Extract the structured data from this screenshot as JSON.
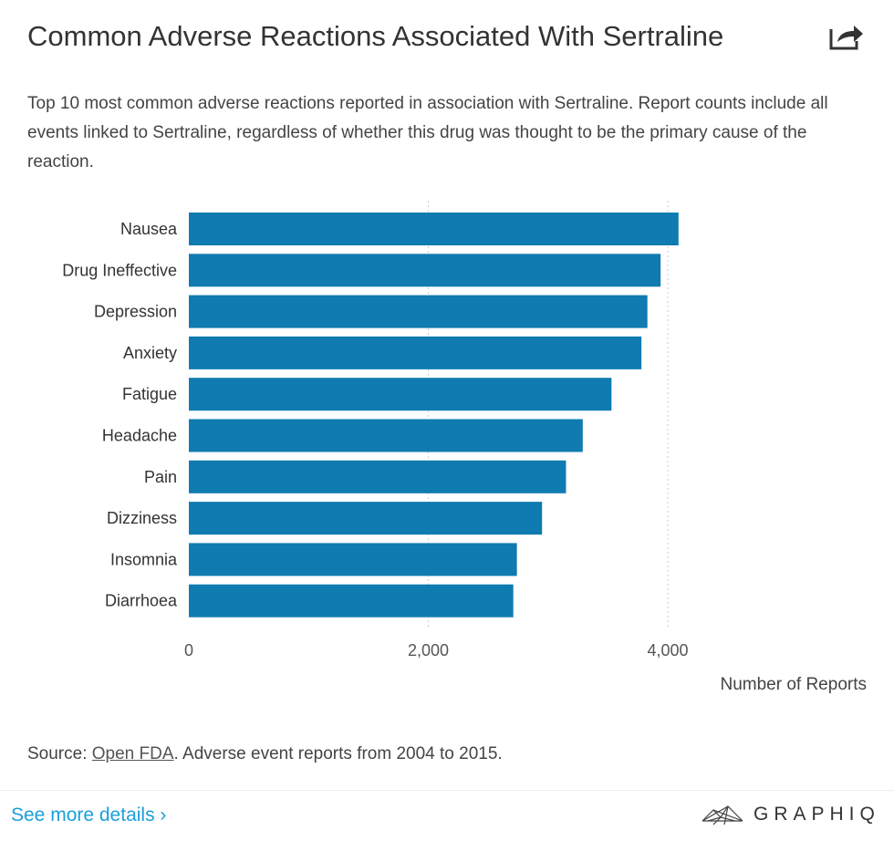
{
  "header": {
    "title": "Common Adverse Reactions Associated With Sertraline",
    "share_icon": "share-arrow-icon"
  },
  "subtitle": "Top 10 most common adverse reactions reported in association with Sertraline. Report counts include all events linked to Sertraline, regardless of whether this drug was thought to be the primary cause of the reaction.",
  "chart_data": {
    "type": "bar",
    "orientation": "horizontal",
    "categories": [
      "Nausea",
      "Drug Ineffective",
      "Depression",
      "Anxiety",
      "Fatigue",
      "Headache",
      "Pain",
      "Dizziness",
      "Insomnia",
      "Diarrhoea"
    ],
    "values": [
      4090,
      3940,
      3830,
      3780,
      3530,
      3290,
      3150,
      2950,
      2740,
      2710
    ],
    "xlabel": "Number of Reports",
    "xlim": [
      0,
      5400
    ],
    "xticks": [
      0,
      2000,
      4000
    ],
    "xtick_labels": [
      "0",
      "2,000",
      "4,000"
    ],
    "grid": "vertical dotted at ticks",
    "bar_color": "#0f7bb0"
  },
  "footer": {
    "source_prefix": "Source: ",
    "source_link": "Open FDA",
    "source_suffix": ". Adverse event reports from 2004 to 2015.",
    "see_more": "See more details ›",
    "brand": "GRAPHIQ"
  }
}
